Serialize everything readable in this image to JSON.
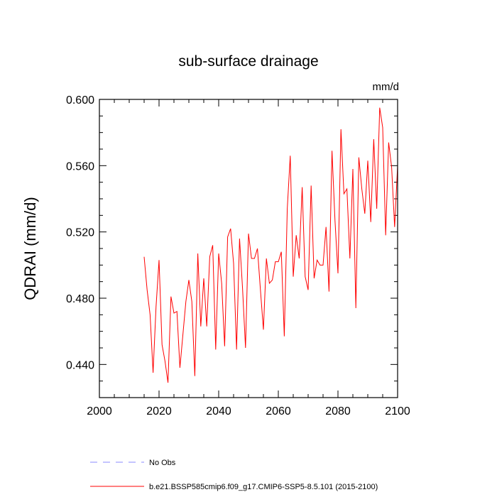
{
  "chart_data": {
    "type": "line",
    "title": "sub-surface drainage",
    "units_label": "mm/d",
    "ylabel": "QDRAI  (mm/d)",
    "xlabel": "",
    "xlim": [
      2000,
      2100
    ],
    "ylim": [
      0.42,
      0.6
    ],
    "x_ticks": [
      2000,
      2020,
      2040,
      2060,
      2080,
      2100
    ],
    "x_tick_labels": [
      "2000",
      "2020",
      "2040",
      "2060",
      "2080",
      "2100"
    ],
    "y_ticks": [
      0.44,
      0.48,
      0.52,
      0.56,
      0.6
    ],
    "y_tick_labels": [
      "0.440",
      "0.480",
      "0.520",
      "0.560",
      "0.600"
    ],
    "grid": false,
    "legend_position": "bottom",
    "series": [
      {
        "name": "b.e21.BSSP585cmip6.f09_g17.CMIP6-SSP5-8.5.101 (2015-2100)",
        "color": "#ff0000",
        "line_style": "solid",
        "x": [
          2015,
          2016,
          2017,
          2018,
          2019,
          2020,
          2021,
          2022,
          2023,
          2024,
          2025,
          2026,
          2027,
          2028,
          2029,
          2030,
          2031,
          2032,
          2033,
          2034,
          2035,
          2036,
          2037,
          2038,
          2039,
          2040,
          2041,
          2042,
          2043,
          2044,
          2045,
          2046,
          2047,
          2048,
          2049,
          2050,
          2051,
          2052,
          2053,
          2054,
          2055,
          2056,
          2057,
          2058,
          2059,
          2060,
          2061,
          2062,
          2063,
          2064,
          2065,
          2066,
          2067,
          2068,
          2069,
          2070,
          2071,
          2072,
          2073,
          2074,
          2075,
          2076,
          2077,
          2078,
          2079,
          2080,
          2081,
          2082,
          2083,
          2084,
          2085,
          2086,
          2087,
          2088,
          2089,
          2090,
          2091,
          2092,
          2093,
          2094,
          2095,
          2096,
          2097,
          2098,
          2099,
          2100
        ],
        "values": [
          0.505,
          0.485,
          0.47,
          0.435,
          0.475,
          0.503,
          0.452,
          0.442,
          0.429,
          0.481,
          0.471,
          0.472,
          0.438,
          0.458,
          0.478,
          0.491,
          0.478,
          0.433,
          0.507,
          0.463,
          0.492,
          0.463,
          0.505,
          0.512,
          0.449,
          0.507,
          0.489,
          0.451,
          0.517,
          0.522,
          0.501,
          0.449,
          0.516,
          0.486,
          0.45,
          0.519,
          0.504,
          0.504,
          0.51,
          0.485,
          0.461,
          0.504,
          0.489,
          0.491,
          0.502,
          0.502,
          0.508,
          0.457,
          0.534,
          0.566,
          0.493,
          0.518,
          0.504,
          0.547,
          0.493,
          0.485,
          0.548,
          0.492,
          0.503,
          0.5,
          0.5,
          0.523,
          0.484,
          0.569,
          0.527,
          0.495,
          0.582,
          0.543,
          0.546,
          0.504,
          0.558,
          0.474,
          0.565,
          0.546,
          0.531,
          0.563,
          0.526,
          0.576,
          0.534,
          0.595,
          0.583,
          0.518,
          0.574,
          0.559,
          0.523,
          0.56
        ]
      }
    ],
    "legend": [
      {
        "label": "No Obs",
        "color": "#8b8bff",
        "line_style": "dashed"
      },
      {
        "label": "b.e21.BSSP585cmip6.f09_g17.CMIP6-SSP5-8.5.101 (2015-2100)",
        "color": "#ff0000",
        "line_style": "solid"
      }
    ]
  }
}
